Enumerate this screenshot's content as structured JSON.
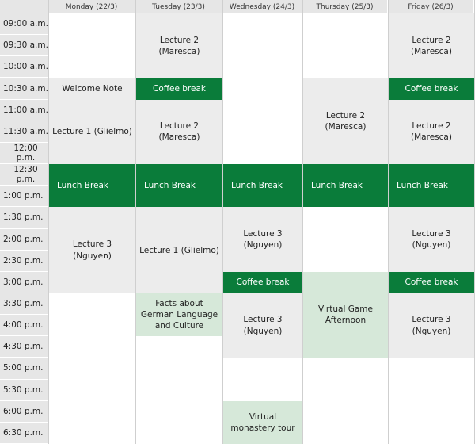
{
  "days": [
    "Monday (22/3)",
    "Tuesday (23/3)",
    "Wednesday (24/3)",
    "Thursday (25/3)",
    "Friday (26/3)"
  ],
  "times": [
    "09:00 a.m.",
    "09:30 a.m.",
    "10:00 a.m.",
    "10:30 a.m.",
    "11:00 a.m.",
    "11:30 a.m.",
    "12:00 p.m.",
    "12:30 p.m.",
    "1:00 p.m.",
    "1:30 p.m.",
    "2:00 p.m.",
    "2:30 p.m.",
    "3:00 p.m.",
    "3:30 p.m.",
    "4:00 p.m.",
    "4:30 p.m.",
    "5:00 p.m.",
    "5:30 p.m.",
    "6:00 p.m.",
    "6:30 p.m."
  ],
  "events": [
    {
      "day": 0,
      "start": 3,
      "end": 4,
      "label": "Welcome Note",
      "style": "lecture"
    },
    {
      "day": 0,
      "start": 4,
      "end": 7,
      "label": "Lecture 1 (Glielmo)",
      "style": "lecture"
    },
    {
      "day": 0,
      "start": 7,
      "end": 9,
      "label": "Lunch Break",
      "style": "lunch"
    },
    {
      "day": 0,
      "start": 9,
      "end": 13,
      "label": "Lecture 3 (Nguyen)",
      "style": "lecture"
    },
    {
      "day": 1,
      "start": 0,
      "end": 3,
      "label": "Lecture 2 (Maresca)",
      "style": "lecture"
    },
    {
      "day": 1,
      "start": 3,
      "end": 4,
      "label": "Coffee break",
      "style": "green"
    },
    {
      "day": 1,
      "start": 4,
      "end": 7,
      "label": "Lecture 2 (Maresca)",
      "style": "lecture"
    },
    {
      "day": 1,
      "start": 7,
      "end": 9,
      "label": "Lunch Break",
      "style": "lunch"
    },
    {
      "day": 1,
      "start": 9,
      "end": 13,
      "label": "Lecture 1 (Glielmo)",
      "style": "lecture"
    },
    {
      "day": 1,
      "start": 13,
      "end": 15,
      "label": "Facts about German Language and Culture",
      "style": "light"
    },
    {
      "day": 2,
      "start": 7,
      "end": 9,
      "label": "Lunch Break",
      "style": "lunch"
    },
    {
      "day": 2,
      "start": 9,
      "end": 12,
      "label": "Lecture 3 (Nguyen)",
      "style": "lecture"
    },
    {
      "day": 2,
      "start": 12,
      "end": 13,
      "label": "Coffee break",
      "style": "green"
    },
    {
      "day": 2,
      "start": 13,
      "end": 16,
      "label": "Lecture 3 (Nguyen)",
      "style": "lecture"
    },
    {
      "day": 2,
      "start": 18,
      "end": 20,
      "label": "Virtual monastery tour",
      "style": "light"
    },
    {
      "day": 3,
      "start": 3,
      "end": 7,
      "label": "Lecture 2 (Maresca)",
      "style": "lecture"
    },
    {
      "day": 3,
      "start": 7,
      "end": 9,
      "label": "Lunch Break",
      "style": "lunch"
    },
    {
      "day": 3,
      "start": 12,
      "end": 16,
      "label": "Virtual Game Afternoon",
      "style": "light"
    },
    {
      "day": 4,
      "start": 0,
      "end": 3,
      "label": "Lecture 2 (Maresca)",
      "style": "lecture"
    },
    {
      "day": 4,
      "start": 3,
      "end": 4,
      "label": "Coffee break",
      "style": "green"
    },
    {
      "day": 4,
      "start": 4,
      "end": 7,
      "label": "Lecture 2 (Maresca)",
      "style": "lecture"
    },
    {
      "day": 4,
      "start": 7,
      "end": 9,
      "label": "Lunch Break",
      "style": "lunch"
    },
    {
      "day": 4,
      "start": 9,
      "end": 12,
      "label": "Lecture 3 (Nguyen)",
      "style": "lecture"
    },
    {
      "day": 4,
      "start": 12,
      "end": 13,
      "label": "Coffee break",
      "style": "green"
    },
    {
      "day": 4,
      "start": 13,
      "end": 16,
      "label": "Lecture 3 (Nguyen)",
      "style": "lecture"
    }
  ],
  "colors": {
    "accent_green": "#0a7c3a",
    "light_green": "#d6e8d9",
    "lecture_gray": "#ececec",
    "header_gray": "#e6e6e6"
  }
}
